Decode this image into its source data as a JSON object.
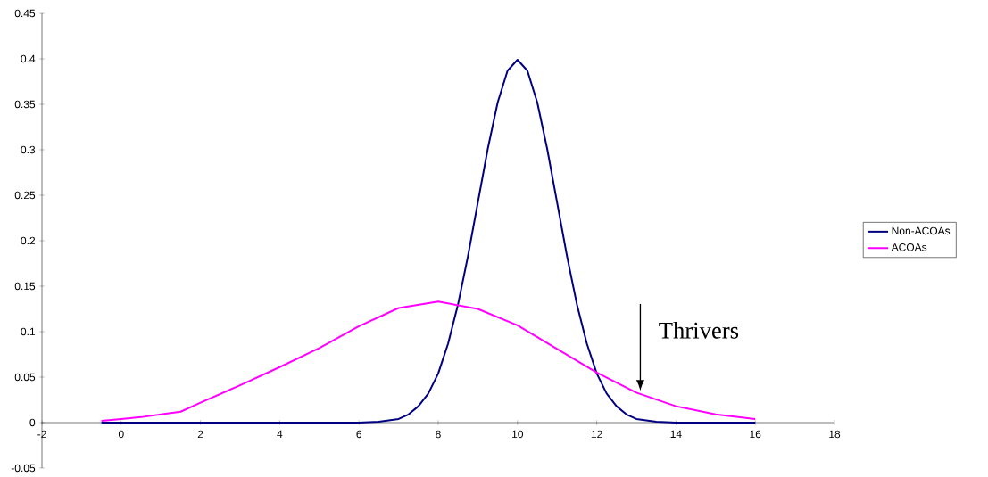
{
  "chart_data": {
    "type": "line",
    "xlim": [
      -2,
      18
    ],
    "ylim": [
      -0.05,
      0.45
    ],
    "xticks": [
      -2,
      0,
      2,
      4,
      6,
      8,
      10,
      12,
      14,
      16,
      18
    ],
    "yticks": [
      -0.05,
      0,
      0.05,
      0.1,
      0.15,
      0.2,
      0.25,
      0.3,
      0.35,
      0.4,
      0.45
    ],
    "legend": "right",
    "marker": "none",
    "line_style": "solid",
    "annotations": [
      {
        "text": "Thrivers",
        "x": 13.1,
        "y": 0.035
      }
    ],
    "series": [
      {
        "name": "Non-ACOAs",
        "color": "#000080",
        "x": [
          -0.5,
          2,
          4,
          6,
          6.5,
          7,
          7.25,
          7.5,
          7.75,
          8,
          8.25,
          8.5,
          8.75,
          9,
          9.25,
          9.5,
          9.75,
          10,
          10.25,
          10.5,
          10.75,
          11,
          11.25,
          11.5,
          11.75,
          12,
          12.25,
          12.5,
          12.75,
          13,
          13.5,
          14,
          16
        ],
        "values": [
          0,
          0,
          0,
          0,
          0.001,
          0.004,
          0.009,
          0.018,
          0.032,
          0.054,
          0.087,
          0.13,
          0.183,
          0.242,
          0.301,
          0.352,
          0.387,
          0.399,
          0.387,
          0.352,
          0.301,
          0.242,
          0.183,
          0.13,
          0.087,
          0.054,
          0.032,
          0.018,
          0.009,
          0.004,
          0.001,
          0,
          0
        ]
      },
      {
        "name": "ACOAs",
        "color": "#ff00ff",
        "x": [
          -0.5,
          0,
          0.5,
          1,
          1.5,
          2,
          3,
          4,
          5,
          6,
          7,
          8,
          9,
          10,
          11,
          12,
          13,
          14,
          15,
          16
        ],
        "values": [
          0.002,
          0.004,
          0.006,
          0.009,
          0.012,
          0.022,
          0.041,
          0.061,
          0.082,
          0.106,
          0.126,
          0.133,
          0.125,
          0.107,
          0.081,
          0.055,
          0.033,
          0.018,
          0.009,
          0.004
        ]
      }
    ]
  }
}
